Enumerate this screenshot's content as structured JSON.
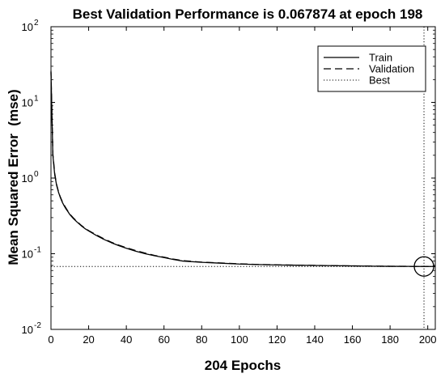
{
  "chart_data": {
    "type": "line",
    "title": "Best Validation Performance is 0.067874 at epoch 198",
    "xlabel": "204 Epochs",
    "ylabel": "Mean Squared Error  (mse)",
    "xlim": [
      0,
      204
    ],
    "ylim": [
      0.01,
      100
    ],
    "yscale": "log",
    "xticks": [
      "0",
      "20",
      "40",
      "60",
      "80",
      "100",
      "120",
      "140",
      "160",
      "180",
      "200"
    ],
    "yticks": [
      {
        "base": "10",
        "exp": "-2"
      },
      {
        "base": "10",
        "exp": "-1"
      },
      {
        "base": "10",
        "exp": "0"
      },
      {
        "base": "10",
        "exp": "1"
      },
      {
        "base": "10",
        "exp": "2"
      }
    ],
    "grid": false,
    "legend_position": "top-right",
    "legend": [
      "Train",
      "Validation",
      "Best"
    ],
    "series": [
      {
        "name": "Train",
        "style": "solid",
        "color": "#000000",
        "x": [
          0,
          1,
          2,
          3,
          4,
          5,
          6,
          7,
          8,
          9,
          10,
          12,
          14,
          16,
          18,
          20,
          24,
          28,
          32,
          36,
          40,
          45,
          50,
          55,
          60,
          65,
          70,
          80,
          90,
          100,
          110,
          120,
          130,
          140,
          150,
          160,
          170,
          180,
          190,
          198,
          204
        ],
        "y": [
          25,
          2.0,
          1.1,
          0.8,
          0.65,
          0.55,
          0.48,
          0.43,
          0.39,
          0.36,
          0.33,
          0.29,
          0.26,
          0.235,
          0.215,
          0.2,
          0.175,
          0.155,
          0.14,
          0.128,
          0.118,
          0.108,
          0.1,
          0.094,
          0.089,
          0.084,
          0.08,
          0.077,
          0.075,
          0.073,
          0.072,
          0.071,
          0.0705,
          0.07,
          0.0695,
          0.069,
          0.0685,
          0.0682,
          0.068,
          0.0679,
          0.0678
        ]
      },
      {
        "name": "Validation",
        "style": "dashed",
        "color": "#000000",
        "x": [
          0,
          1,
          2,
          3,
          4,
          5,
          6,
          7,
          8,
          9,
          10,
          12,
          14,
          16,
          18,
          20,
          24,
          28,
          32,
          36,
          40,
          45,
          50,
          55,
          60,
          65,
          70,
          80,
          90,
          100,
          110,
          120,
          130,
          140,
          150,
          160,
          170,
          180,
          190,
          198,
          204
        ],
        "y": [
          26,
          2.1,
          1.15,
          0.82,
          0.66,
          0.56,
          0.49,
          0.44,
          0.4,
          0.365,
          0.335,
          0.295,
          0.265,
          0.238,
          0.218,
          0.202,
          0.178,
          0.158,
          0.142,
          0.13,
          0.12,
          0.11,
          0.102,
          0.095,
          0.09,
          0.085,
          0.081,
          0.0775,
          0.0755,
          0.0735,
          0.0722,
          0.0712,
          0.0706,
          0.0701,
          0.0696,
          0.0691,
          0.0686,
          0.0683,
          0.0681,
          0.067874,
          0.0679
        ]
      }
    ],
    "best": {
      "name": "Best",
      "style": "dotted",
      "epoch": 198,
      "value": 0.067874
    }
  }
}
